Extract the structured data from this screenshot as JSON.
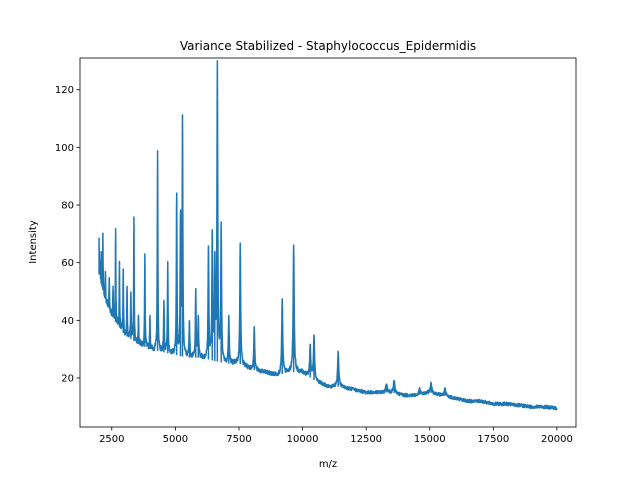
{
  "chart_data": {
    "type": "line",
    "title": "Variance Stabilized - Staphylococcus_Epidermidis",
    "xlabel": "m/z",
    "ylabel": "Intensity",
    "xlim": [
      1250,
      20750
    ],
    "ylim": [
      3,
      131
    ],
    "xticks": [
      2500,
      5000,
      7500,
      10000,
      12500,
      15000,
      17500,
      20000
    ],
    "yticks": [
      20,
      40,
      60,
      80,
      100,
      120
    ],
    "grid": false,
    "color": "#1f77b4",
    "baseline": [
      [
        2000,
        56
      ],
      [
        2100,
        52
      ],
      [
        2300,
        46
      ],
      [
        2600,
        40
      ],
      [
        3000,
        35
      ],
      [
        3500,
        32
      ],
      [
        4000,
        30
      ],
      [
        4500,
        29
      ],
      [
        5000,
        28
      ],
      [
        5500,
        27
      ],
      [
        6000,
        27
      ],
      [
        6500,
        26
      ],
      [
        7000,
        25
      ],
      [
        7500,
        25
      ],
      [
        8000,
        23
      ],
      [
        8500,
        22
      ],
      [
        9000,
        21
      ],
      [
        9500,
        22
      ],
      [
        10000,
        22
      ],
      [
        10500,
        19
      ],
      [
        11000,
        17
      ],
      [
        11500,
        17
      ],
      [
        12000,
        16
      ],
      [
        12500,
        15
      ],
      [
        13000,
        15
      ],
      [
        13500,
        15
      ],
      [
        14000,
        14
      ],
      [
        14500,
        14
      ],
      [
        15000,
        15
      ],
      [
        15500,
        14
      ],
      [
        16000,
        13
      ],
      [
        16500,
        12
      ],
      [
        17000,
        12
      ],
      [
        17500,
        11
      ],
      [
        18000,
        11
      ],
      [
        18500,
        10.5
      ],
      [
        19000,
        10
      ],
      [
        19500,
        10
      ],
      [
        20000,
        9.5
      ]
    ],
    "peaks": [
      {
        "x": 2000,
        "y": 68
      },
      {
        "x": 2080,
        "y": 64
      },
      {
        "x": 2150,
        "y": 69
      },
      {
        "x": 2250,
        "y": 56
      },
      {
        "x": 2400,
        "y": 55
      },
      {
        "x": 2550,
        "y": 52
      },
      {
        "x": 2650,
        "y": 72
      },
      {
        "x": 2800,
        "y": 60
      },
      {
        "x": 2950,
        "y": 58
      },
      {
        "x": 3100,
        "y": 52
      },
      {
        "x": 3250,
        "y": 50
      },
      {
        "x": 3370,
        "y": 76
      },
      {
        "x": 3550,
        "y": 42
      },
      {
        "x": 3800,
        "y": 62
      },
      {
        "x": 4000,
        "y": 41
      },
      {
        "x": 4300,
        "y": 99
      },
      {
        "x": 4550,
        "y": 46
      },
      {
        "x": 4700,
        "y": 59
      },
      {
        "x": 5050,
        "y": 84
      },
      {
        "x": 5200,
        "y": 76
      },
      {
        "x": 5280,
        "y": 111
      },
      {
        "x": 5550,
        "y": 40
      },
      {
        "x": 5800,
        "y": 50
      },
      {
        "x": 5900,
        "y": 41
      },
      {
        "x": 6300,
        "y": 66
      },
      {
        "x": 6450,
        "y": 70
      },
      {
        "x": 6550,
        "y": 60
      },
      {
        "x": 6650,
        "y": 128
      },
      {
        "x": 6800,
        "y": 72
      },
      {
        "x": 7100,
        "y": 41
      },
      {
        "x": 7550,
        "y": 67
      },
      {
        "x": 8100,
        "y": 38
      },
      {
        "x": 9200,
        "y": 47
      },
      {
        "x": 9650,
        "y": 66
      },
      {
        "x": 10300,
        "y": 31
      },
      {
        "x": 10450,
        "y": 35
      },
      {
        "x": 11400,
        "y": 29
      },
      {
        "x": 13300,
        "y": 18
      },
      {
        "x": 13600,
        "y": 19
      },
      {
        "x": 14600,
        "y": 16
      },
      {
        "x": 15050,
        "y": 18
      },
      {
        "x": 15600,
        "y": 16
      }
    ]
  }
}
